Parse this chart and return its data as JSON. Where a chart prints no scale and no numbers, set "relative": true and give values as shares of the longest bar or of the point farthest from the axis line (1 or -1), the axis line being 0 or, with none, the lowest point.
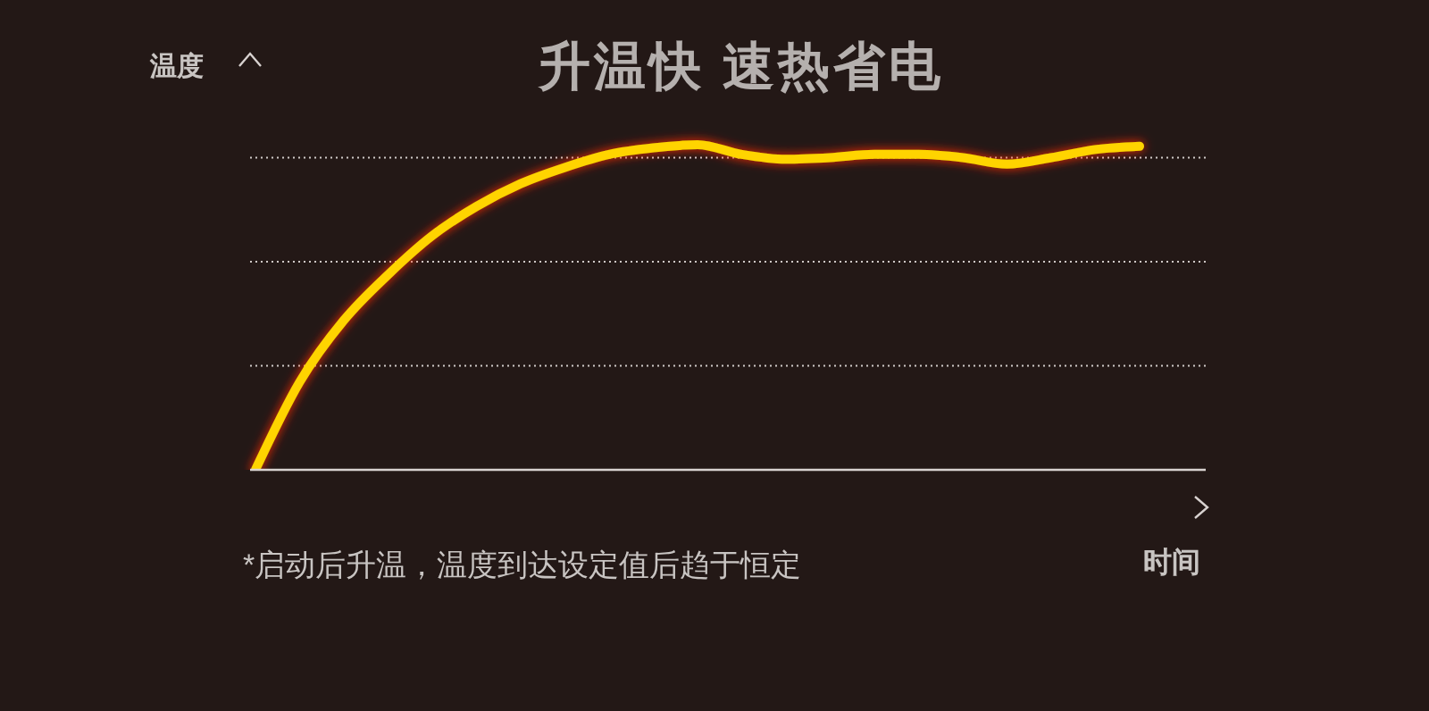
{
  "chart_data": {
    "type": "line",
    "title": "升温快 速热省电",
    "xlabel": "时间",
    "ylabel": "温度",
    "annotations": [
      "*启动后升温，温度到达设定值后趋于恒定"
    ],
    "relative": true,
    "grid": "y",
    "marker": "none",
    "line_style": "solid",
    "categories": [
      null,
      null,
      null,
      null,
      null,
      null,
      null,
      null,
      null,
      null,
      null,
      null,
      null,
      null,
      null,
      null,
      null,
      null,
      null,
      null,
      null
    ],
    "series": [
      {
        "color": "#ffd400",
        "values": [
          0,
          0.27,
          0.46,
          0.6,
          0.72,
          0.81,
          0.88,
          0.93,
          0.97,
          0.99,
          1,
          0.97,
          0.955,
          0.96,
          0.97,
          0.97,
          0.96,
          0.94,
          0.96,
          0.985,
          0.995
        ]
      }
    ]
  }
}
